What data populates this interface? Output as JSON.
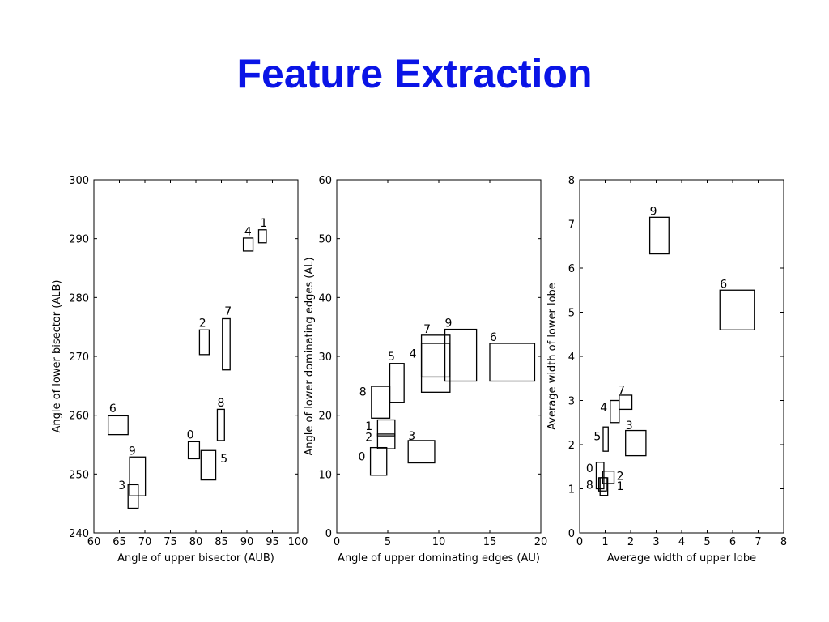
{
  "slide": {
    "title": "Feature Extraction"
  },
  "chart_data": [
    {
      "type": "scatter",
      "mark": "rectangle",
      "xlabel": "Angle of upper bisector (AUB)",
      "ylabel": "Angle of lower bisector (ALB)",
      "xlim": [
        60,
        100
      ],
      "ylim": [
        240,
        300
      ],
      "xticks": [
        60,
        65,
        70,
        75,
        80,
        85,
        90,
        95,
        100
      ],
      "yticks": [
        240,
        250,
        260,
        270,
        280,
        290,
        300
      ],
      "boxes": [
        {
          "label": "0",
          "x0": 78.5,
          "x1": 80.7,
          "y0": 252.6,
          "y1": 255.5,
          "lx": 78.2,
          "ly": 256
        },
        {
          "label": "1",
          "x0": 92.3,
          "x1": 93.8,
          "y0": 289.3,
          "y1": 291.5,
          "lx": 92.6,
          "ly": 292
        },
        {
          "label": "2",
          "x0": 80.7,
          "x1": 82.6,
          "y0": 270.3,
          "y1": 274.5,
          "lx": 80.6,
          "ly": 275
        },
        {
          "label": "3",
          "x0": 66.7,
          "x1": 68.7,
          "y0": 244.2,
          "y1": 248.2,
          "lx": 64.8,
          "ly": 247.4
        },
        {
          "label": "4",
          "x0": 89.3,
          "x1": 91.2,
          "y0": 287.9,
          "y1": 290.1,
          "lx": 89.5,
          "ly": 290.6
        },
        {
          "label": "5",
          "x0": 81.0,
          "x1": 83.9,
          "y0": 249.0,
          "y1": 254.0,
          "lx": 84.8,
          "ly": 252.0
        },
        {
          "label": "6",
          "x0": 62.8,
          "x1": 66.7,
          "y0": 256.7,
          "y1": 259.9,
          "lx": 63.0,
          "ly": 260.5
        },
        {
          "label": "7",
          "x0": 85.2,
          "x1": 86.7,
          "y0": 267.7,
          "y1": 276.4,
          "lx": 85.6,
          "ly": 277.0
        },
        {
          "label": "8",
          "x0": 84.2,
          "x1": 85.6,
          "y0": 255.7,
          "y1": 261.0,
          "lx": 84.2,
          "ly": 261.5
        },
        {
          "label": "9",
          "x0": 67.0,
          "x1": 70.1,
          "y0": 246.3,
          "y1": 252.9,
          "lx": 66.8,
          "ly": 253.3
        }
      ]
    },
    {
      "type": "scatter",
      "mark": "rectangle",
      "xlabel": "Angle of upper dominating edges (AU)",
      "ylabel": "Angle of lower dominating edges (AL)",
      "xlim": [
        0,
        20
      ],
      "ylim": [
        0,
        60
      ],
      "xticks": [
        0,
        5,
        10,
        15,
        20
      ],
      "yticks": [
        0,
        10,
        20,
        30,
        40,
        50,
        60
      ],
      "boxes": [
        {
          "label": "0",
          "x0": 3.3,
          "x1": 4.9,
          "y0": 9.8,
          "y1": 14.5,
          "lx": 2.1,
          "ly": 12.3
        },
        {
          "label": "1",
          "x0": 4.0,
          "x1": 5.7,
          "y0": 16.5,
          "y1": 19.2,
          "lx": 2.8,
          "ly": 17.5
        },
        {
          "label": "2",
          "x0": 4.0,
          "x1": 5.7,
          "y0": 14.3,
          "y1": 16.8,
          "lx": 2.8,
          "ly": 15.6
        },
        {
          "label": "3",
          "x0": 7.0,
          "x1": 9.6,
          "y0": 11.9,
          "y1": 15.7,
          "lx": 7.0,
          "ly": 15.8
        },
        {
          "label": "4",
          "x0": 8.3,
          "x1": 11.1,
          "y0": 26.5,
          "y1": 32.2,
          "lx": 7.1,
          "ly": 29.8
        },
        {
          "label": "5",
          "x0": 5.2,
          "x1": 6.6,
          "y0": 22.2,
          "y1": 28.8,
          "lx": 5.0,
          "ly": 29.3
        },
        {
          "label": "6",
          "x0": 15.0,
          "x1": 19.4,
          "y0": 25.8,
          "y1": 32.2,
          "lx": 15.0,
          "ly": 32.6
        },
        {
          "label": "7",
          "x0": 8.3,
          "x1": 11.1,
          "y0": 23.9,
          "y1": 33.6,
          "lx": 8.5,
          "ly": 34.0
        },
        {
          "label": "8",
          "x0": 3.4,
          "x1": 5.2,
          "y0": 19.5,
          "y1": 24.9,
          "lx": 2.2,
          "ly": 23.3
        },
        {
          "label": "9",
          "x0": 10.6,
          "x1": 13.7,
          "y0": 25.8,
          "y1": 34.6,
          "lx": 10.6,
          "ly": 35.0
        }
      ]
    },
    {
      "type": "scatter",
      "mark": "rectangle",
      "xlabel": "Average width of upper lobe",
      "ylabel": "Average width of lower lobe",
      "xlim": [
        0,
        8
      ],
      "ylim": [
        0,
        8
      ],
      "xticks": [
        0,
        1,
        2,
        3,
        4,
        5,
        6,
        7,
        8
      ],
      "yticks": [
        0,
        1,
        2,
        3,
        4,
        5,
        6,
        7,
        8
      ],
      "boxes": [
        {
          "label": "0",
          "x0": 0.65,
          "x1": 0.95,
          "y0": 1.0,
          "y1": 1.6,
          "lx": 0.25,
          "ly": 1.38
        },
        {
          "label": "1",
          "x0": 0.8,
          "x1": 1.1,
          "y0": 0.85,
          "y1": 1.25,
          "lx": 1.45,
          "ly": 0.97
        },
        {
          "label": "2",
          "x0": 0.9,
          "x1": 1.35,
          "y0": 1.12,
          "y1": 1.4,
          "lx": 1.45,
          "ly": 1.2
        },
        {
          "label": "3",
          "x0": 1.8,
          "x1": 2.6,
          "y0": 1.75,
          "y1": 2.32,
          "lx": 1.8,
          "ly": 2.35
        },
        {
          "label": "4",
          "x0": 1.2,
          "x1": 1.55,
          "y0": 2.5,
          "y1": 3.0,
          "lx": 0.8,
          "ly": 2.75
        },
        {
          "label": "5",
          "x0": 0.92,
          "x1": 1.12,
          "y0": 1.85,
          "y1": 2.4,
          "lx": 0.55,
          "ly": 2.1
        },
        {
          "label": "6",
          "x0": 5.5,
          "x1": 6.85,
          "y0": 4.6,
          "y1": 5.5,
          "lx": 5.5,
          "ly": 5.55
        },
        {
          "label": "7",
          "x0": 1.55,
          "x1": 2.05,
          "y0": 2.8,
          "y1": 3.12,
          "lx": 1.5,
          "ly": 3.15
        },
        {
          "label": "8",
          "x0": 0.75,
          "x1": 1.05,
          "y0": 0.95,
          "y1": 1.25,
          "lx": 0.25,
          "ly": 1.0
        },
        {
          "label": "9",
          "x0": 2.75,
          "x1": 3.5,
          "y0": 6.32,
          "y1": 7.15,
          "lx": 2.75,
          "ly": 7.2
        }
      ]
    }
  ]
}
